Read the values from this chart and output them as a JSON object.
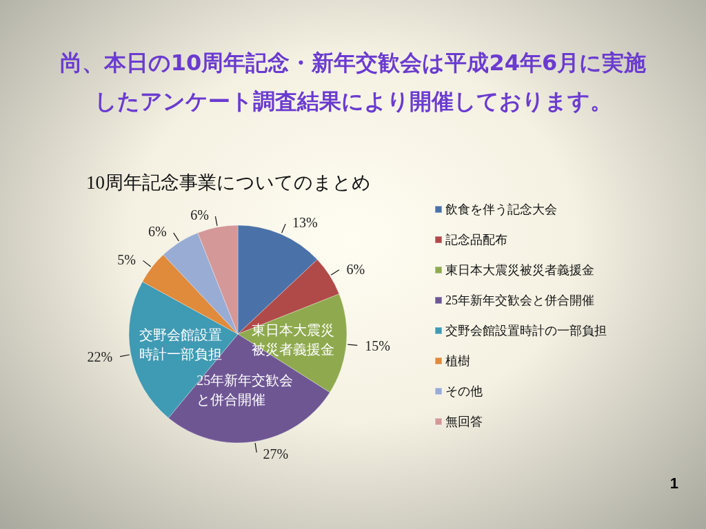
{
  "chart_data": {
    "type": "pie",
    "title": "尚、本日の10周年記念・新年交歓会は平成24年6月に実施したアンケート調査結果により開催しております。",
    "subtitle": "10周年記念事業についてのまとめ",
    "categories": [
      "飲食を伴う記念大会",
      "記念品配布",
      "東日本大震災被災者義援金",
      "25年新年交歓会と併合開催",
      "交野会館設置時計の一部負担",
      "植樹",
      "その他",
      "無回答"
    ],
    "values": [
      13,
      6,
      15,
      27,
      22,
      5,
      6,
      6
    ],
    "value_labels": [
      "13%",
      "6%",
      "15%",
      "27%",
      "22%",
      "5%",
      "6%",
      "6%"
    ],
    "colors": [
      "#4a72a8",
      "#b04a48",
      "#8faa4e",
      "#6e5693",
      "#3f9ab3",
      "#e08a3c",
      "#98acd4",
      "#d49898"
    ],
    "legend": "right",
    "annotations": [
      {
        "text": "東日本大震災被災者義援金",
        "x": "東日本大震災被災者義援金"
      },
      {
        "text": "25年新年交歓会と併合開催",
        "x": "25年新年交歓会と併合開催"
      },
      {
        "text": "交野会館設置時計一部負担",
        "x": "交野会館設置時計の一部負担"
      },
      "1"
    ]
  }
}
